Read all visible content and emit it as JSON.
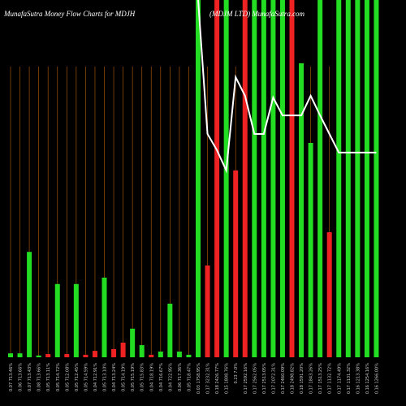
{
  "chart_data": {
    "type": "bar",
    "title": "MunafaSutra  Money Flow  Charts for MDJH",
    "subtitle": "(MDJM LTD) MunafaSutra.com",
    "categories": [
      "0.07 713.46%",
      "0.06 713.66%",
      "0.07 713.43%",
      "0.08 713.66%",
      "0.05 713.11%",
      "0.05 714.72%",
      "0.05 712.08%",
      "0.05 712.45%",
      "0.05 714.59%",
      "0.04 712.91%",
      "0.05 713.10%",
      "0.04 713.24%",
      "0.05 714.19%",
      "0.05 715.19%",
      "0.05 715.83%",
      "0.04 718.19%",
      "0.04 716.67%",
      "0.04 722.95%",
      "0.06 717.36%",
      "0.05 718.47%",
      "0.03 1758.95%",
      "0.17 3232.31%",
      "0.18 2426.77%",
      "0.15 1808.76%",
      "0.23 7.0%",
      "0.17 2592.16%",
      "0.17 2562.05%",
      "0.17 2513.05%",
      "0.17 2072.31%",
      "0.17 2460.09%",
      "0.18 2498.82%",
      "0.18 1591.20%",
      "0.17 1843.26%",
      "0.17 1513.25%",
      "0.17 1132.72%",
      "0.17 1174.49%",
      "0.17 1131.32%",
      "0.16 1213.38%",
      "0.16 1254.16%",
      "0.16 1266.00%"
    ],
    "series": [
      {
        "name": "Money Flow",
        "colors": [
          "#22dd22",
          "#22dd22",
          "#22dd22",
          "#22dd22",
          "#ee2222",
          "#22dd22",
          "#ee2222",
          "#22dd22",
          "#ee2222",
          "#ee2222",
          "#22dd22",
          "#ee2222",
          "#ee2222",
          "#22dd22",
          "#22dd22",
          "#ee2222",
          "#22dd22",
          "#22dd22",
          "#22dd22",
          "#22dd22",
          "#22dd22",
          "#ee2222",
          "#ee2222",
          "#22dd22",
          "#ee2222",
          "#ee2222",
          "#22dd22",
          "#22dd22",
          "#22dd22",
          "#22dd22",
          "#ee2222",
          "#22dd22",
          "#22dd22",
          "#22dd22",
          "#ee2222",
          "#22dd22",
          "#22dd22",
          "#22dd22",
          "#22dd22",
          "#22dd22"
        ],
        "values": [
          1.1,
          1.1,
          29.5,
          0.5,
          0.9,
          20.5,
          0.9,
          20.5,
          0.7,
          1.8,
          22.3,
          2.3,
          4.1,
          8,
          3.4,
          0.7,
          1.6,
          15,
          1.6,
          0.7,
          100,
          25.7,
          100,
          100,
          52.3,
          100,
          100,
          100,
          100,
          100,
          100,
          82.3,
          60,
          100,
          35,
          100,
          100,
          100,
          100,
          100
        ]
      },
      {
        "name": "Trend",
        "type": "line",
        "color": "#ffffff",
        "values": [
          null,
          null,
          null,
          null,
          null,
          null,
          null,
          null,
          null,
          null,
          null,
          null,
          null,
          null,
          null,
          null,
          null,
          null,
          null,
          null,
          100,
          62.5,
          58,
          52.3,
          78.4,
          73.2,
          62.5,
          62.5,
          72.7,
          67.7,
          67.7,
          67.7,
          73.2,
          67.7,
          62.5,
          57.3,
          57.3,
          57.3,
          57.3,
          57.3
        ]
      }
    ],
    "ylim": [
      0,
      100
    ],
    "grid": true
  }
}
